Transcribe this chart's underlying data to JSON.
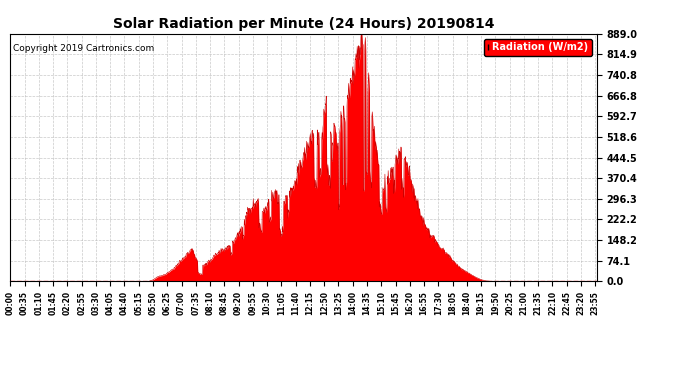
{
  "title": "Solar Radiation per Minute (24 Hours) 20190814",
  "copyright_text": "Copyright 2019 Cartronics.com",
  "legend_label": "Radiation (W/m2)",
  "fill_color": "#FF0000",
  "line_color": "#CC0000",
  "background_color": "#FFFFFF",
  "grid_color": "#BBBBBB",
  "copyright_color": "#000000",
  "dashed_line_color": "#FF0000",
  "ytick_values": [
    0.0,
    74.1,
    148.2,
    222.2,
    296.3,
    370.4,
    444.5,
    518.6,
    592.7,
    666.8,
    740.8,
    814.9,
    889.0
  ],
  "ylim": [
    0.0,
    889.0
  ],
  "total_minutes": 1440,
  "xtick_step": 35
}
